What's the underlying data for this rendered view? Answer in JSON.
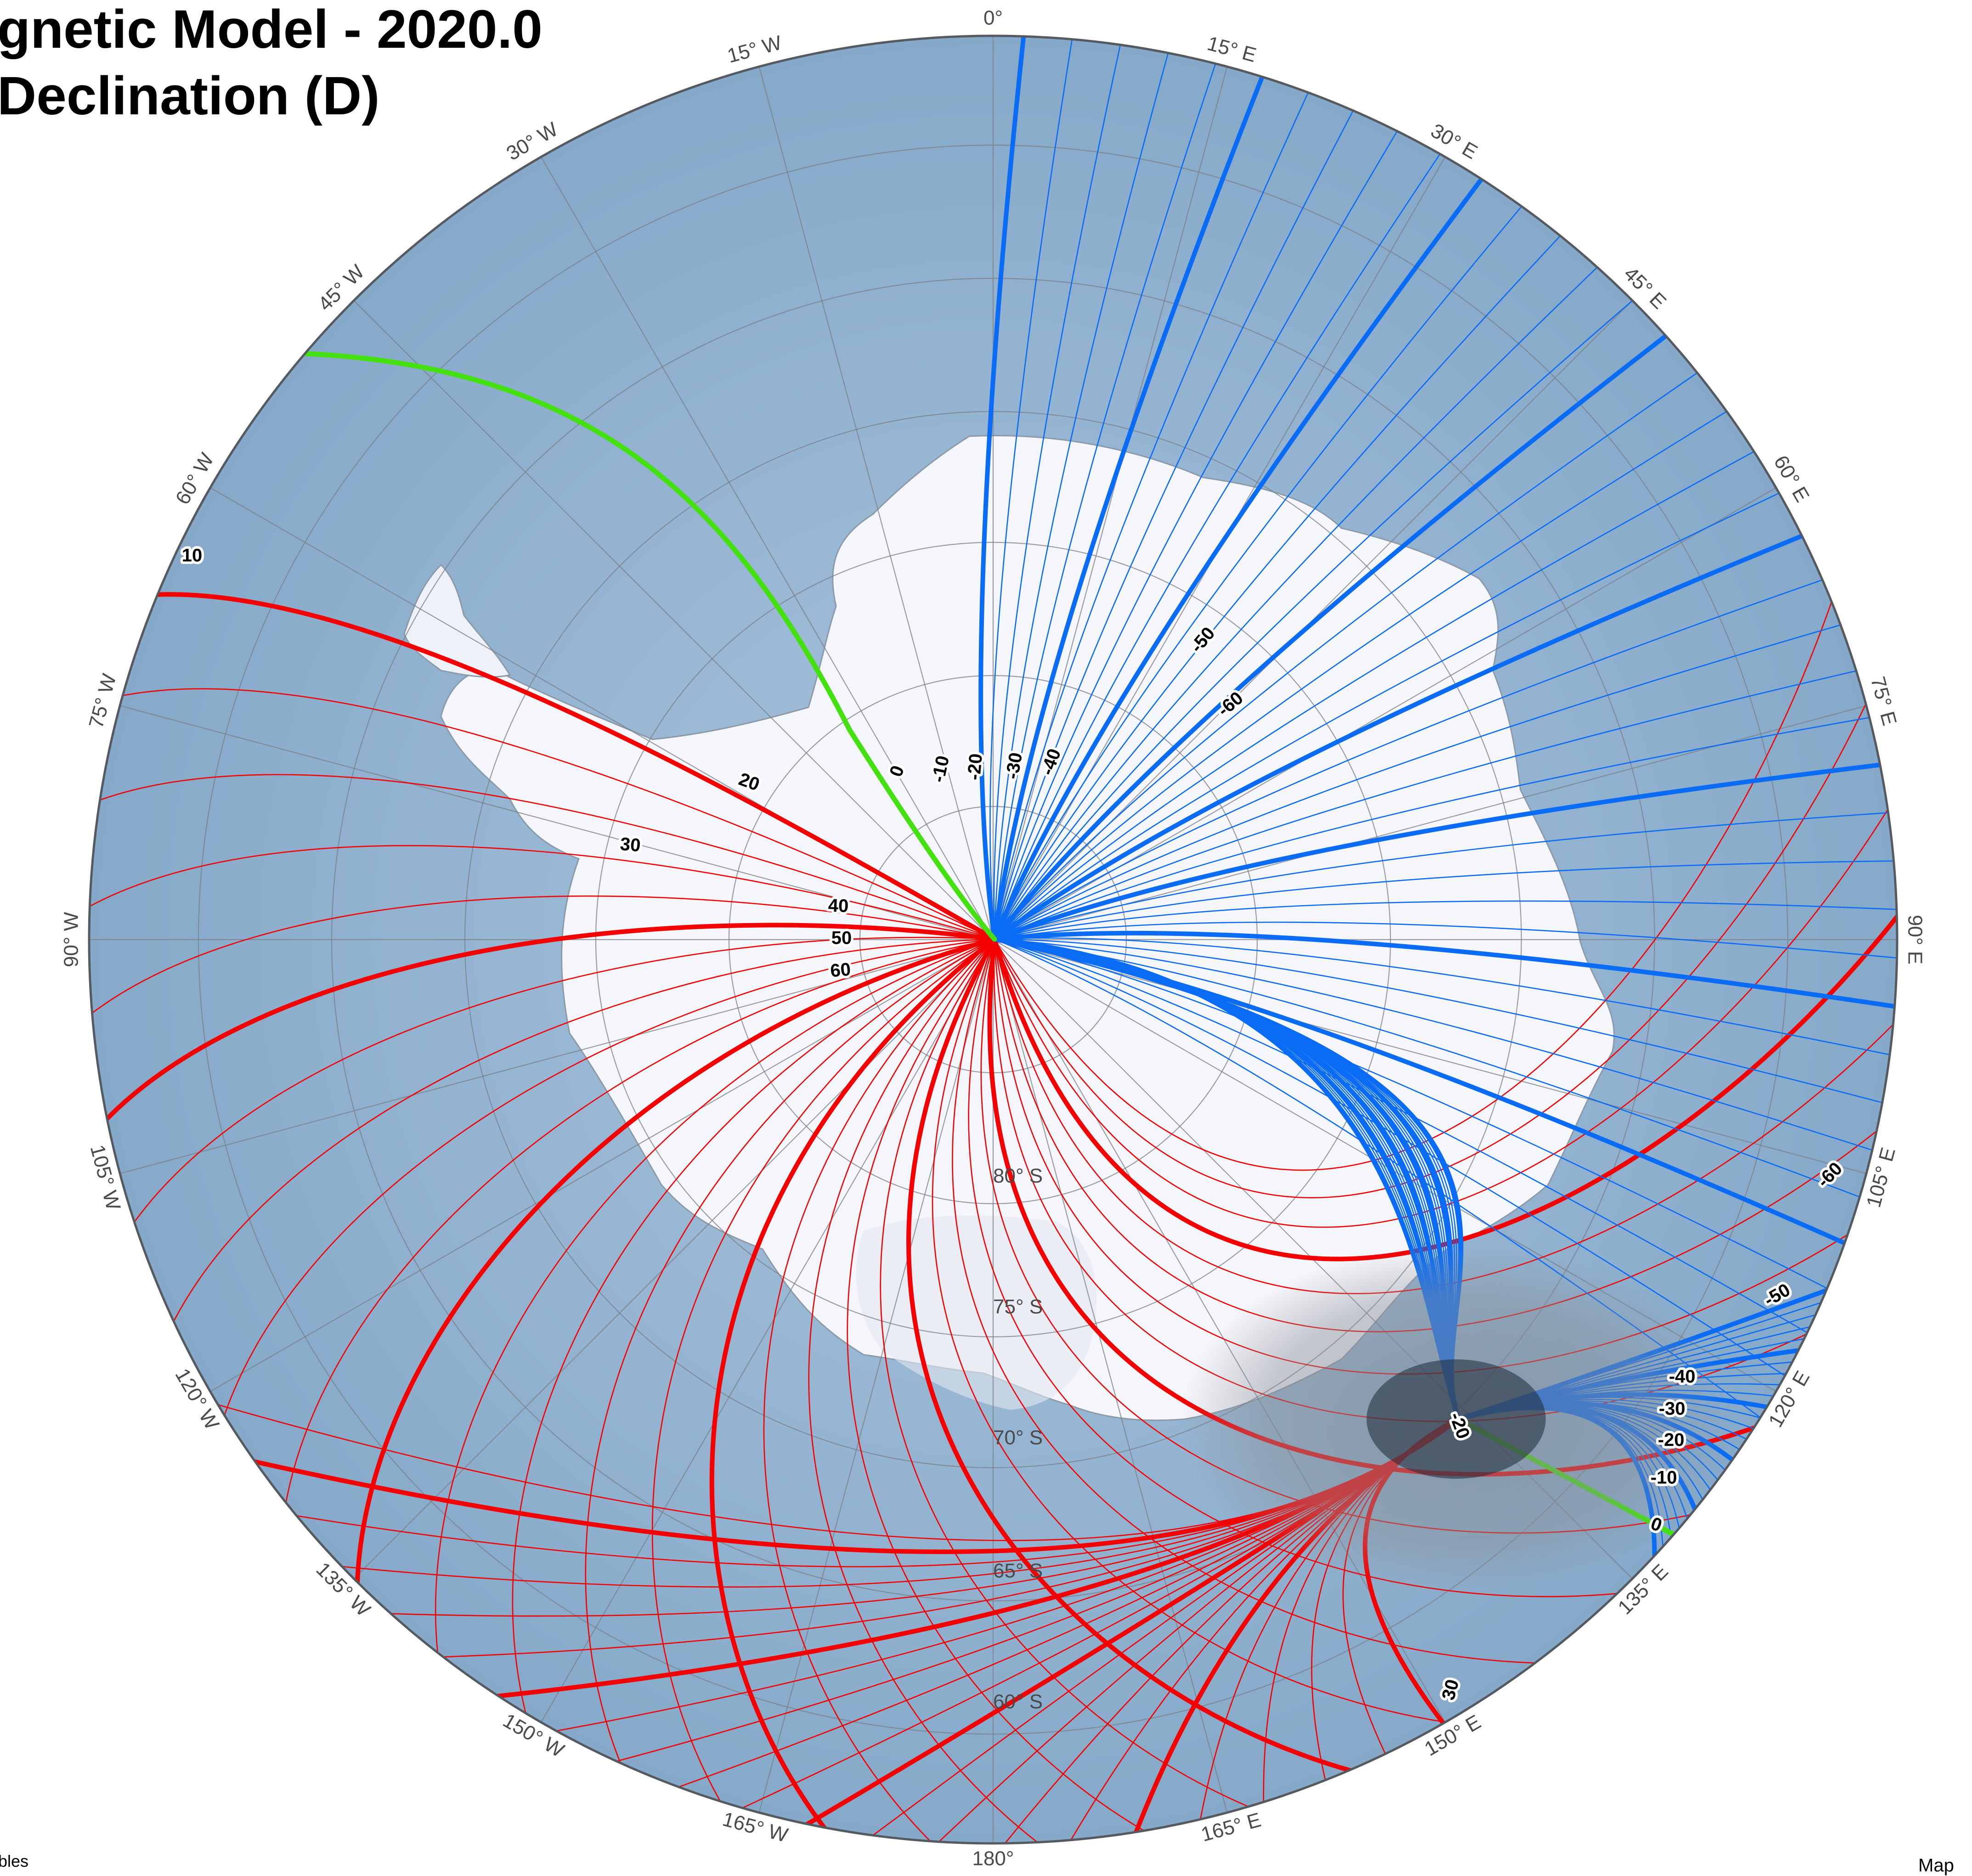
{
  "title": {
    "line1": "gnetic Model - 2020.0",
    "line2": "Declination (D)"
  },
  "credits": {
    "left": "bles",
    "right": "Map"
  },
  "colors": {
    "ocean": "#93b4d2",
    "ocean_deep": "#86a9c9",
    "land_ice": "#f4f6fb",
    "frame": "#555a60",
    "graticule": "#7a7f86",
    "positive": "#f40000",
    "negative": "#0a6cf4",
    "zero": "#44e010",
    "pole_halo": "#8a8f96",
    "pole_core": "#1f2a38"
  },
  "projection": "south polar stereographic",
  "longitude_labels": [
    "0°",
    "15° E",
    "30° E",
    "45° E",
    "60° E",
    "75° E",
    "90° E",
    "105° E",
    "120° E",
    "135° E",
    "150° E",
    "165° E",
    "180°",
    "165° W",
    "150° W",
    "135° W",
    "120° W",
    "105° W",
    "90° W",
    "75° W",
    "60° W",
    "45° W",
    "30° W",
    "15° W"
  ],
  "latitude_labels": [
    "80° S",
    "75° S",
    "70° S",
    "65° S",
    "60° S"
  ],
  "contours": {
    "field": "Declination (D)",
    "interval_degrees": 2,
    "major_interval_degrees": 10,
    "positive": "red",
    "negative": "blue",
    "zero": "green",
    "labels_north_group": [
      "0",
      "-10",
      "-20",
      "-30",
      "-40",
      "-50",
      "-60"
    ],
    "labels_positive_group": [
      "10",
      "20",
      "30",
      "40",
      "50",
      "60"
    ],
    "labels_magnetic_pole_group": [
      "0",
      "-10",
      "-20",
      "-30",
      "-40",
      "-50",
      "-60"
    ],
    "labels_south_group": [
      "-20",
      "30"
    ]
  }
}
